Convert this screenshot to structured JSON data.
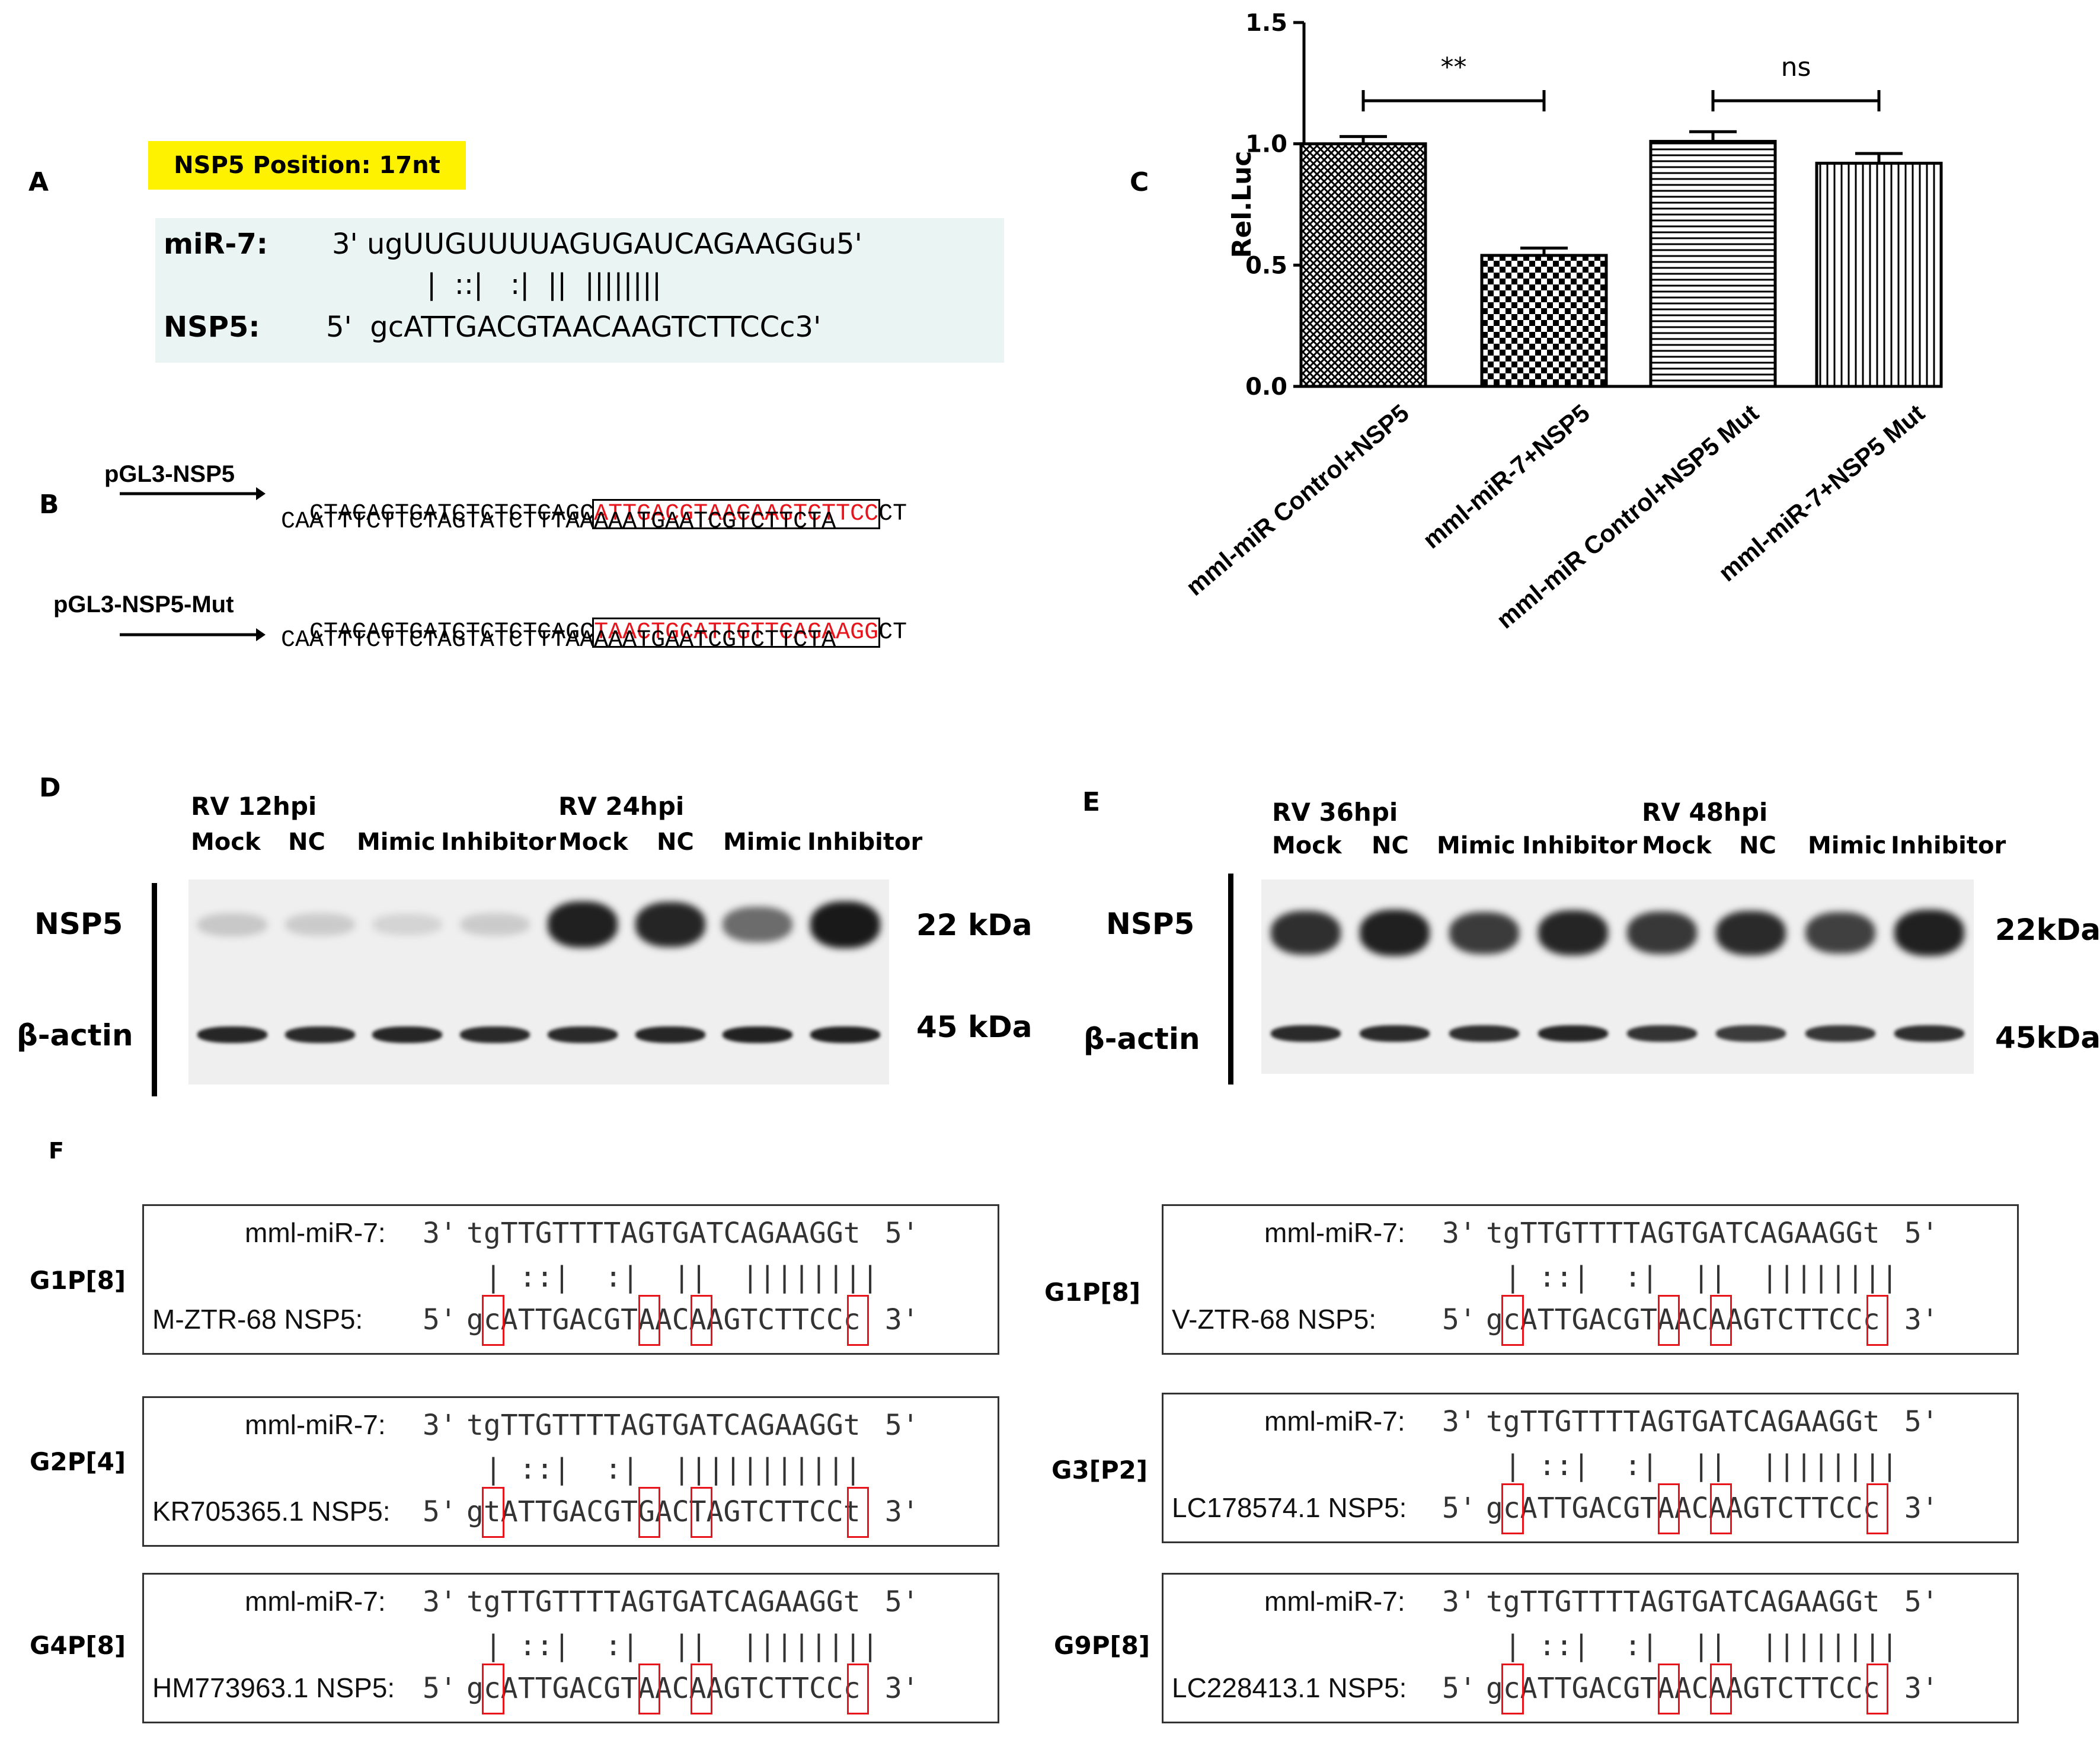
{
  "panels": {
    "A": "A",
    "B": "B",
    "C": "C",
    "D": "D",
    "E": "E",
    "F": "F"
  },
  "panel_a": {
    "position_label": "NSP5 Position: 17nt",
    "mir_label": "miR-7:",
    "mir_seq": "3' ugUUGUUUUAGUGAUCAGAAGGu5'",
    "pairing": "|  ::|   :|  ||  ||||||||",
    "nsp_label": "NSP5:",
    "nsp_seq": "5'  gcATTGACGTAACAAGTCTTCCc3'"
  },
  "panel_b": {
    "wt": {
      "label": "pGL3-NSP5",
      "pre": "CTACAGTGATCTCTCTCAGC",
      "target": "ATTGACGTAACAAGTCTTCC",
      "post": "CT",
      "line2": "CAATTTCTTCTAGTATCTTTAAAAATGAATCGTCTTCTA"
    },
    "mut": {
      "label": "pGL3-NSP5-Mut",
      "pre": "CTACAGTGATCTCTCTCAGC",
      "target": "TAACTGCATTGTTCAGAAGG",
      "post": "CT",
      "line2": "CAATTTCTTCTAGTATCTTTAAAAATGAATCGTCTTCTA"
    },
    "highlight_color": "#e8141b"
  },
  "chart_data": {
    "type": "bar",
    "ylabel": "Rel.Luc",
    "ylim": [
      0,
      1.5
    ],
    "yticks": [
      "0.0",
      "0.5",
      "1.0",
      "1.5"
    ],
    "categories": [
      "mml-miR Control+NSP5",
      "mml-miR-7+NSP5",
      "mml-miR Control+NSP5 Mut",
      "mml-miR-7+NSP5 Mut"
    ],
    "values": [
      1.0,
      0.54,
      1.01,
      0.92
    ],
    "errors": [
      0.03,
      0.03,
      0.04,
      0.04
    ],
    "patterns": [
      "crosshatch",
      "checker",
      "horizontal",
      "vertical"
    ],
    "significance": [
      {
        "from": 0,
        "to": 1,
        "label": "**"
      },
      {
        "from": 2,
        "to": 3,
        "label": "ns"
      }
    ]
  },
  "panel_d": {
    "groups": [
      "RV 12hpi",
      "RV 24hpi"
    ],
    "lanes": [
      "Mock",
      "NC",
      "Mimic",
      "Inhibitor",
      "Mock",
      "NC",
      "Mimic",
      "Inhibitor"
    ],
    "rows": [
      "NSP5",
      "β-actin"
    ],
    "sizes": [
      "22 kDa",
      "45 kDa"
    ],
    "nsp5_intensity": [
      0.18,
      0.16,
      0.12,
      0.16,
      0.95,
      0.92,
      0.6,
      0.98
    ],
    "actin_intensity": [
      0.9,
      0.88,
      0.9,
      0.88,
      0.88,
      0.9,
      0.92,
      0.92
    ]
  },
  "panel_e": {
    "groups": [
      "RV 36hpi",
      "RV 48hpi"
    ],
    "lanes": [
      "Mock",
      "NC",
      "Mimic",
      "Inhibitor",
      "Mock",
      "NC",
      "Mimic",
      "Inhibitor"
    ],
    "rows": [
      "NSP5",
      "β-actin"
    ],
    "sizes": [
      "22kDa",
      "45kDa"
    ],
    "nsp5_intensity": [
      0.88,
      0.95,
      0.82,
      0.92,
      0.84,
      0.9,
      0.8,
      0.95
    ],
    "actin_intensity": [
      0.88,
      0.88,
      0.86,
      0.9,
      0.84,
      0.8,
      0.82,
      0.86
    ]
  },
  "panel_f": {
    "boxes": [
      {
        "genotype": "G1P[8]",
        "mir_label": "mml-miR-7:",
        "mir_prime": "3'",
        "mir_seq": "tgTTGTTTTAGTGATCAGAAGGt",
        "mir_end": "5'",
        "pairs": " | ::|  :|  ||  ||||||||",
        "nsp_label": "M-ZTR-68 NSP5:",
        "nsp_prime": "5'",
        "nsp_seq": "gcATTGACGTAACAAGTCTTCCc",
        "nsp_end": "3'"
      },
      {
        "genotype": "G1P[8]",
        "mir_label": "mml-miR-7:",
        "mir_prime": "3'",
        "mir_seq": "tgTTGTTTTAGTGATCAGAAGGt",
        "mir_end": "5'",
        "pairs": " | ::|  :|  ||  ||||||||",
        "nsp_label": "V-ZTR-68 NSP5:",
        "nsp_prime": "5'",
        "nsp_seq": "gcATTGACGTAACAAGTCTTCCc",
        "nsp_end": "3'"
      },
      {
        "genotype": "G2P[4]",
        "mir_label": "mml-miR-7:",
        "mir_prime": "3'",
        "mir_seq": "tgTTGTTTTAGTGATCAGAAGGt",
        "mir_end": "5'",
        "pairs": " | ::|  :|  |||||||||||",
        "nsp_label": "KR705365.1 NSP5:",
        "nsp_prime": "5'",
        "nsp_seq": "gtATTGACGTGACTAGTCTTCCt",
        "nsp_end": "3'"
      },
      {
        "genotype": "G3[P2]",
        "mir_label": "mml-miR-7:",
        "mir_prime": "3'",
        "mir_seq": "tgTTGTTTTAGTGATCAGAAGGt",
        "mir_end": "5'",
        "pairs": " | ::|  :|  ||  ||||||||",
        "nsp_label": "LC178574.1 NSP5:",
        "nsp_prime": "5'",
        "nsp_seq": "gcATTGACGTAACAAGTCTTCCc",
        "nsp_end": "3'"
      },
      {
        "genotype": "G4P[8]",
        "mir_label": "mml-miR-7:",
        "mir_prime": "3'",
        "mir_seq": "tgTTGTTTTAGTGATCAGAAGGt",
        "mir_end": "5'",
        "pairs": " | ::|  :|  ||  ||||||||",
        "nsp_label": "HM773963.1 NSP5:",
        "nsp_prime": "5'",
        "nsp_seq": "gcATTGACGTAACAAGTCTTCCc",
        "nsp_end": "3'"
      },
      {
        "genotype": "G9P[8]",
        "mir_label": "mml-miR-7:",
        "mir_prime": "3'",
        "mir_seq": "tgTTGTTTTAGTGATCAGAAGGt",
        "mir_end": "5'",
        "pairs": " | ::|  :|  ||  ||||||||",
        "nsp_label": "LC228413.1 NSP5:",
        "nsp_prime": "5'",
        "nsp_seq": "gcATTGACGTAACAAGTCTTCCc",
        "nsp_end": "3'"
      }
    ],
    "highlight_positions": [
      1,
      10,
      13,
      22
    ],
    "highlight_color": "#e8141b"
  }
}
